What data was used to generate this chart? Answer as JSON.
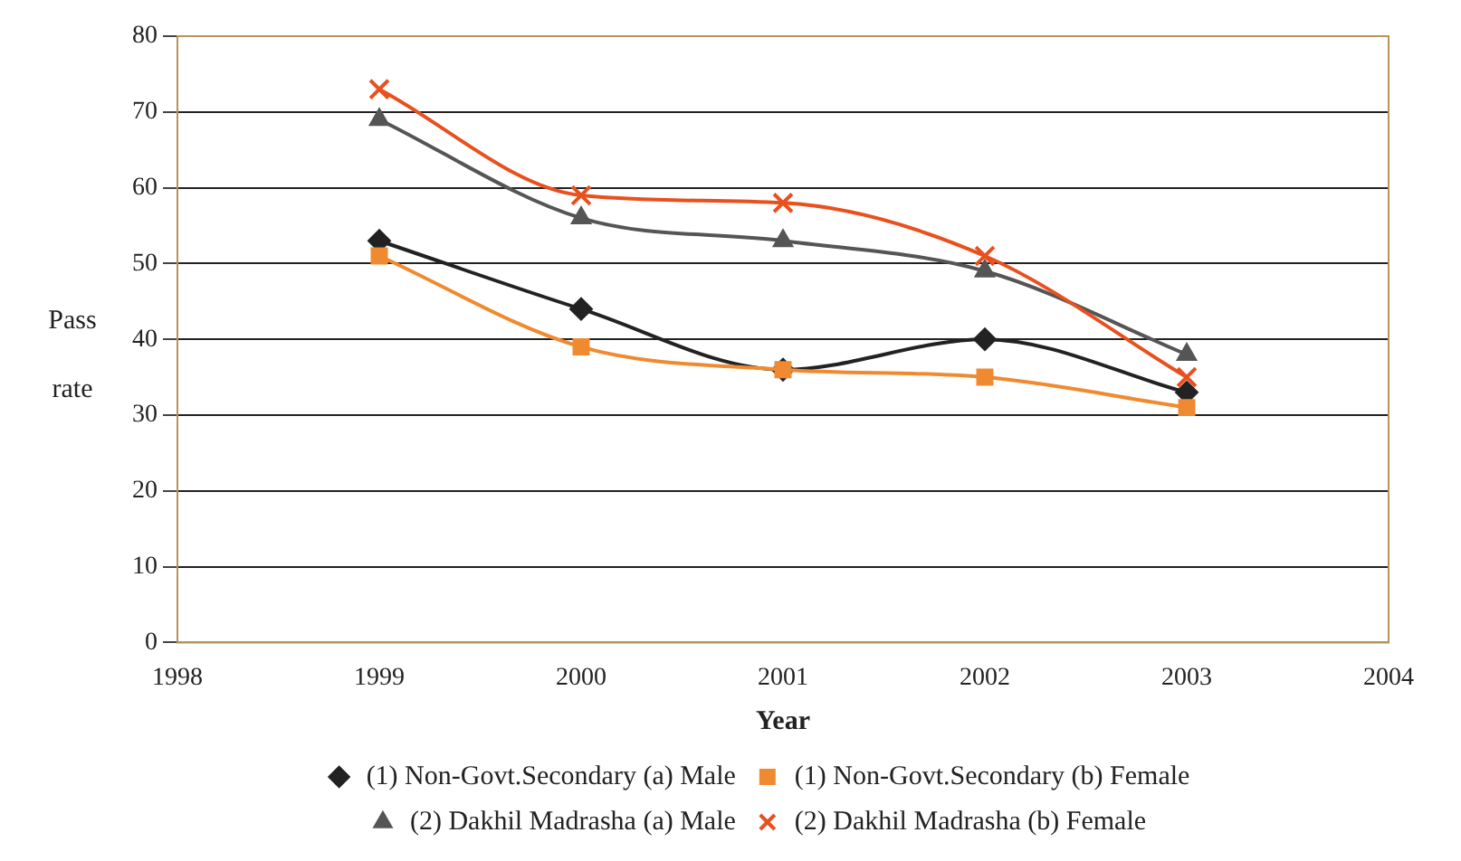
{
  "chart_data": {
    "type": "line",
    "xlabel": "Year",
    "ylabel": "Pass rate",
    "x": [
      1999,
      2000,
      2001,
      2002,
      2003
    ],
    "xlim": [
      1998,
      2004
    ],
    "xticks": [
      1998,
      1999,
      2000,
      2001,
      2002,
      2003,
      2004
    ],
    "ylim": [
      0,
      80
    ],
    "yticks": [
      0,
      10,
      20,
      30,
      40,
      50,
      60,
      70,
      80
    ],
    "grid": "y",
    "legend": "bottom",
    "line_style": "solid",
    "series": [
      {
        "name": "(1) Non-Govt.Secondary (a) Male",
        "color": "#222222",
        "marker": "diamond",
        "values": [
          53,
          44,
          36,
          40,
          33
        ]
      },
      {
        "name": "(1) Non-Govt.Secondary (b) Female",
        "color": "#f08a30",
        "marker": "square",
        "values": [
          51,
          39,
          36,
          35,
          31
        ]
      },
      {
        "name": "(2) Dakhil Madrasha (a) Male",
        "color": "#555555",
        "marker": "triangle",
        "values": [
          69,
          56,
          53,
          49,
          38
        ]
      },
      {
        "name": "(2) Dakhil Madrasha (b) Female",
        "color": "#e8501e",
        "marker": "cross",
        "values": [
          73,
          59,
          58,
          51,
          35
        ]
      }
    ]
  }
}
